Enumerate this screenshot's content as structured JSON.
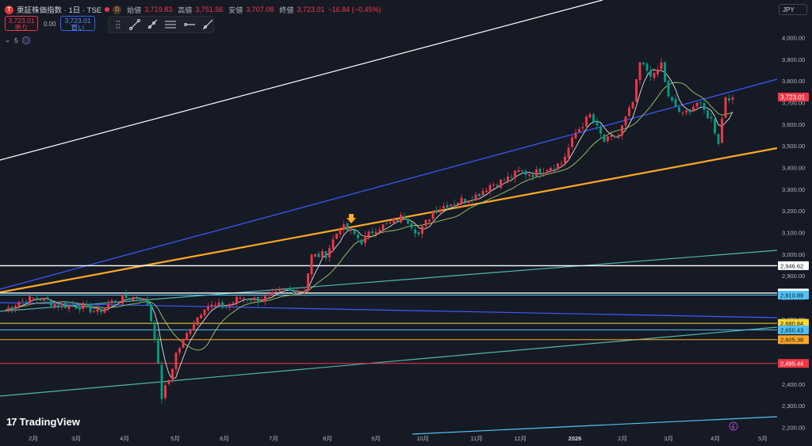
{
  "header": {
    "symbol": "東証株価指数 · 1日 · TSE",
    "symbol_icon": "T",
    "interval_badge": "D",
    "ohlc": [
      {
        "key": "始値",
        "value": "3,719.83"
      },
      {
        "key": "高値",
        "value": "3,751.56"
      },
      {
        "key": "安値",
        "value": "3,707.08"
      },
      {
        "key": "終値",
        "value": "3,723.01"
      },
      {
        "key": "",
        "value": "−16.84 (−0.45%)"
      }
    ]
  },
  "trade": {
    "sell_price": "3,723.01",
    "sell_label": "売り",
    "spread": "0.00",
    "buy_price": "3,723.01",
    "buy_label": "買い"
  },
  "indicators": {
    "count": "5"
  },
  "currency": "JPY",
  "logo_text": "TradingView",
  "colors": {
    "up": "#f23645",
    "down": "#089981",
    "bg": "#161a25",
    "orange": "#ffa726",
    "blue": "#3d5afe",
    "teal": "#4db6ac"
  },
  "chart_data": {
    "type": "candlestick",
    "xlabel": "",
    "ylabel": "",
    "y_ticks": [
      2200,
      2300,
      2400,
      2500,
      2600,
      2700,
      2800,
      2900,
      3000,
      3100,
      3200,
      3300,
      3400,
      3500,
      3600,
      3700,
      3800,
      3900,
      4000
    ],
    "y_tick_labels": [
      "2,200.00",
      "2,300.00",
      "2,400.00",
      "2,500.00",
      "2,600.00",
      "2,700.00",
      "2,800.00",
      "2,900.00",
      "3,000.00",
      "3,100.00",
      "3,200.00",
      "3,300.00",
      "3,400.00",
      "3,500.00",
      "3,600.00",
      "3,700.00",
      "3,800.00",
      "3,900.00",
      "4,000.00"
    ],
    "x_tick_labels": [
      "2月",
      "3月",
      "4月",
      "5月",
      "6月",
      "7月",
      "8月",
      "9月",
      "10月",
      "11月",
      "12月",
      "2026",
      "2月",
      "3月",
      "4月",
      "5月"
    ],
    "ylim": [
      2190,
      4090
    ],
    "grid": false,
    "price_path": [
      [
        0,
        2740
      ],
      [
        4,
        2780
      ],
      [
        9,
        2800
      ],
      [
        14,
        2770
      ],
      [
        18,
        2760
      ],
      [
        22,
        2760
      ],
      [
        26,
        2730
      ],
      [
        30,
        2780
      ],
      [
        34,
        2800
      ],
      [
        38,
        2800
      ],
      [
        40,
        2770
      ],
      [
        42,
        2620
      ],
      [
        44,
        2340
      ],
      [
        46,
        2420
      ],
      [
        48,
        2540
      ],
      [
        52,
        2660
      ],
      [
        56,
        2760
      ],
      [
        62,
        2760
      ],
      [
        66,
        2800
      ],
      [
        70,
        2790
      ],
      [
        74,
        2800
      ],
      [
        78,
        2830
      ],
      [
        82,
        2830
      ],
      [
        84,
        2840
      ],
      [
        86,
        2990
      ],
      [
        90,
        3000
      ],
      [
        94,
        3130
      ],
      [
        98,
        3090
      ],
      [
        100,
        3060
      ],
      [
        104,
        3120
      ],
      [
        108,
        3140
      ],
      [
        112,
        3180
      ],
      [
        116,
        3090
      ],
      [
        120,
        3200
      ],
      [
        124,
        3230
      ],
      [
        128,
        3250
      ],
      [
        132,
        3270
      ],
      [
        136,
        3320
      ],
      [
        140,
        3340
      ],
      [
        144,
        3380
      ],
      [
        148,
        3370
      ],
      [
        152,
        3400
      ],
      [
        156,
        3420
      ],
      [
        160,
        3560
      ],
      [
        164,
        3640
      ],
      [
        168,
        3520
      ],
      [
        172,
        3550
      ],
      [
        176,
        3700
      ],
      [
        178,
        3880
      ],
      [
        182,
        3820
      ],
      [
        184,
        3880
      ],
      [
        186,
        3720
      ],
      [
        190,
        3640
      ],
      [
        194,
        3700
      ],
      [
        198,
        3620
      ],
      [
        200,
        3520
      ],
      [
        202,
        3730
      ],
      [
        204,
        3723
      ]
    ],
    "last_close": 3723.01,
    "horizontal_lines": [
      {
        "price": 2946.62,
        "label": "2,946.62",
        "color": "#ffffff"
      },
      {
        "price": 2820.4,
        "label": "2,820.40",
        "color": "#ffffff"
      },
      {
        "price": 2810.89,
        "label": "2,810.89",
        "color": "#4fc3f7"
      },
      {
        "price": 2680.84,
        "label": "2,680.84",
        "color": "#fdd835"
      },
      {
        "price": 2650.43,
        "label": "2,650.43",
        "color": "#4fc3f7"
      },
      {
        "price": 2605.38,
        "label": "2,605.38",
        "color": "#ffa726"
      },
      {
        "price": 2495.44,
        "label": "2,495.44",
        "color": "#f23645"
      }
    ],
    "current_price_label": "3,723.01"
  }
}
